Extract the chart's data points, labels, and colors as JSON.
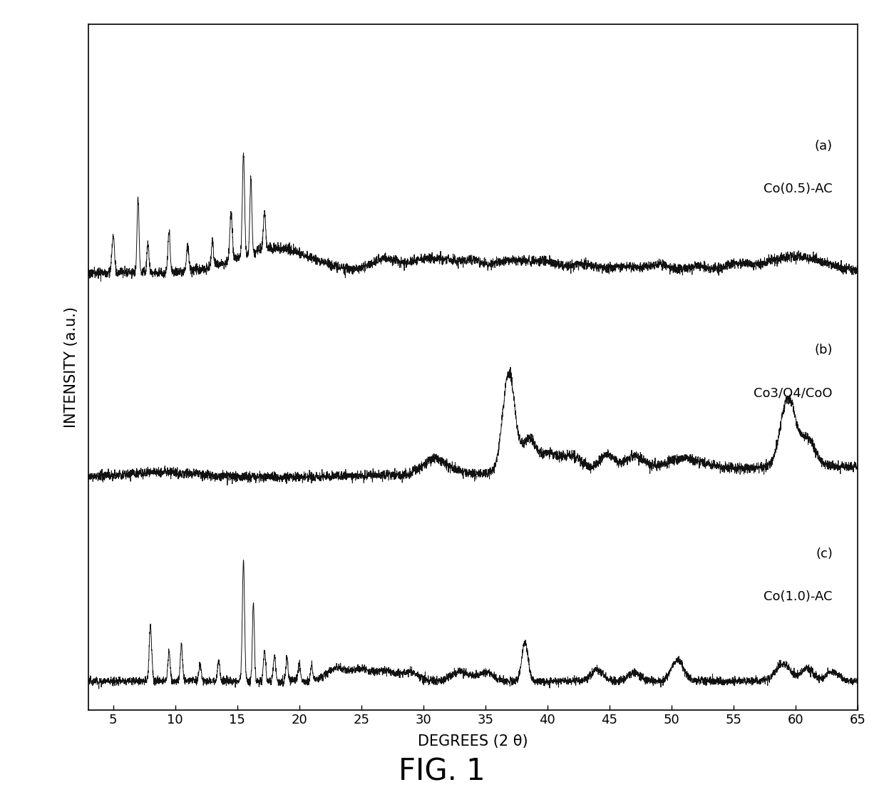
{
  "title": "FIG. 1",
  "xlabel": "DEGREES (2 θ)",
  "ylabel": "INTENSITY (a.u.)",
  "xmin": 3,
  "xmax": 65,
  "labels": [
    "(a)",
    "(b)",
    "(c)"
  ],
  "sample_names": [
    "Co(0.5)-AC",
    "Co3/O4/CoO",
    "Co(1.0)-AC"
  ],
  "offsets": [
    1.9,
    0.95,
    0.0
  ],
  "bg_color": "#ffffff",
  "line_color": "#111111",
  "fig_label_fontsize": 30,
  "axis_label_fontsize": 15,
  "tick_fontsize": 13,
  "sample_label_fontsize": 13,
  "lw": 0.7
}
